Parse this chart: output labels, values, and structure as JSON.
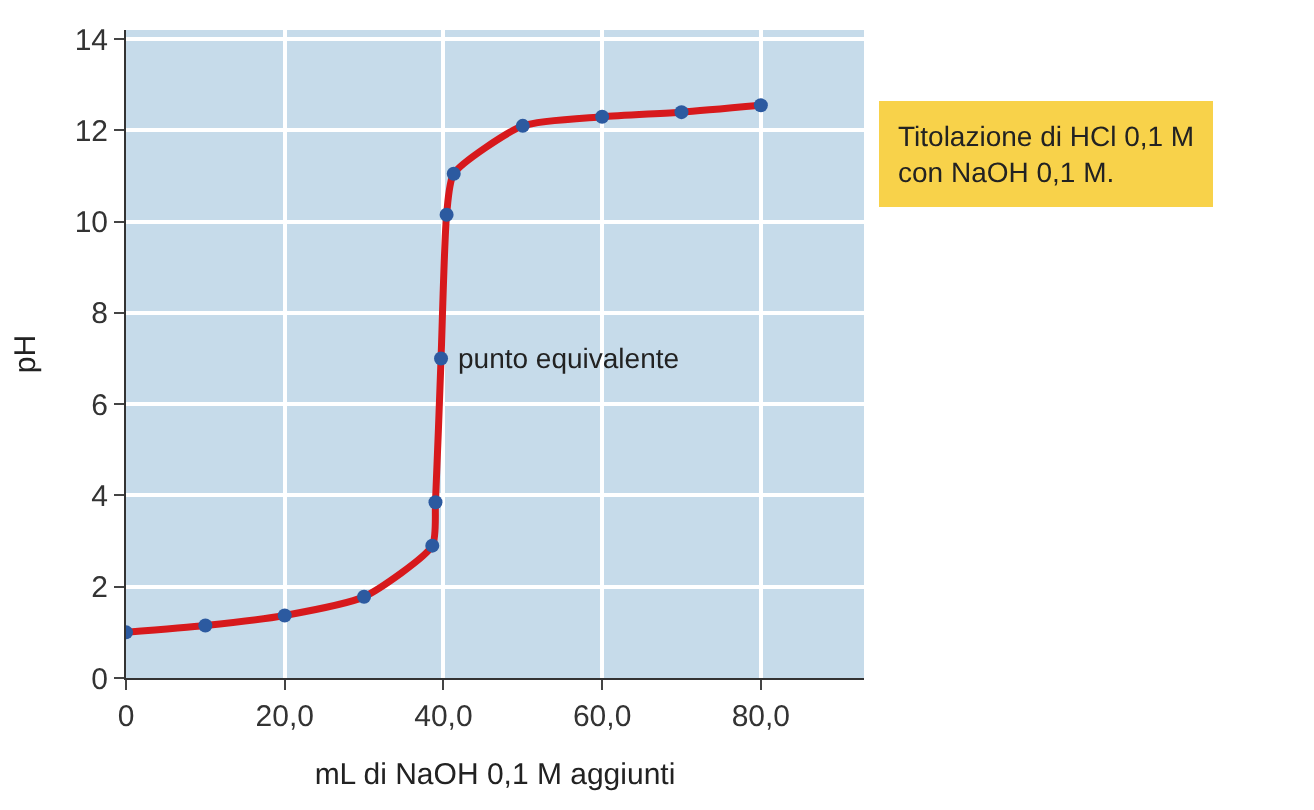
{
  "chart_data": {
    "type": "line",
    "xlabel": "mL di NaOH 0,1 M aggiunti",
    "ylabel": "pH",
    "x": [
      0,
      10,
      20,
      30,
      38.6,
      39.0,
      39.7,
      40.4,
      41.3,
      50,
      60,
      70,
      80
    ],
    "series": [
      {
        "color": "#d7191c",
        "values": [
          1.0,
          1.15,
          1.37,
          1.78,
          2.9,
          3.85,
          7.0,
          10.15,
          11.05,
          12.1,
          12.3,
          12.4,
          12.55
        ]
      },
      {
        "type": "scatter",
        "color": "#2c5aa0",
        "marker": "circle",
        "values": [
          1.0,
          1.15,
          1.37,
          1.78,
          2.9,
          3.85,
          7.0,
          10.15,
          11.05,
          12.1,
          12.3,
          12.4,
          12.55
        ]
      }
    ],
    "xlim": [
      0,
      93
    ],
    "ylim": [
      0,
      14.2
    ],
    "xticks": [
      0,
      {
        "value": 20,
        "label": "20,0"
      },
      {
        "value": 40,
        "label": "40,0"
      },
      {
        "value": 60,
        "label": "60,0"
      },
      {
        "value": 80,
        "label": "80,0"
      }
    ],
    "yticks": [
      0,
      2,
      4,
      6,
      8,
      10,
      12,
      14
    ],
    "grid": true,
    "annotations": [
      {
        "text": "punto equivalente",
        "x": 39.7,
        "y": 7.0
      },
      "Titolazione di HCl 0,1 M\ncon NaOH 0,1 M."
    ]
  }
}
